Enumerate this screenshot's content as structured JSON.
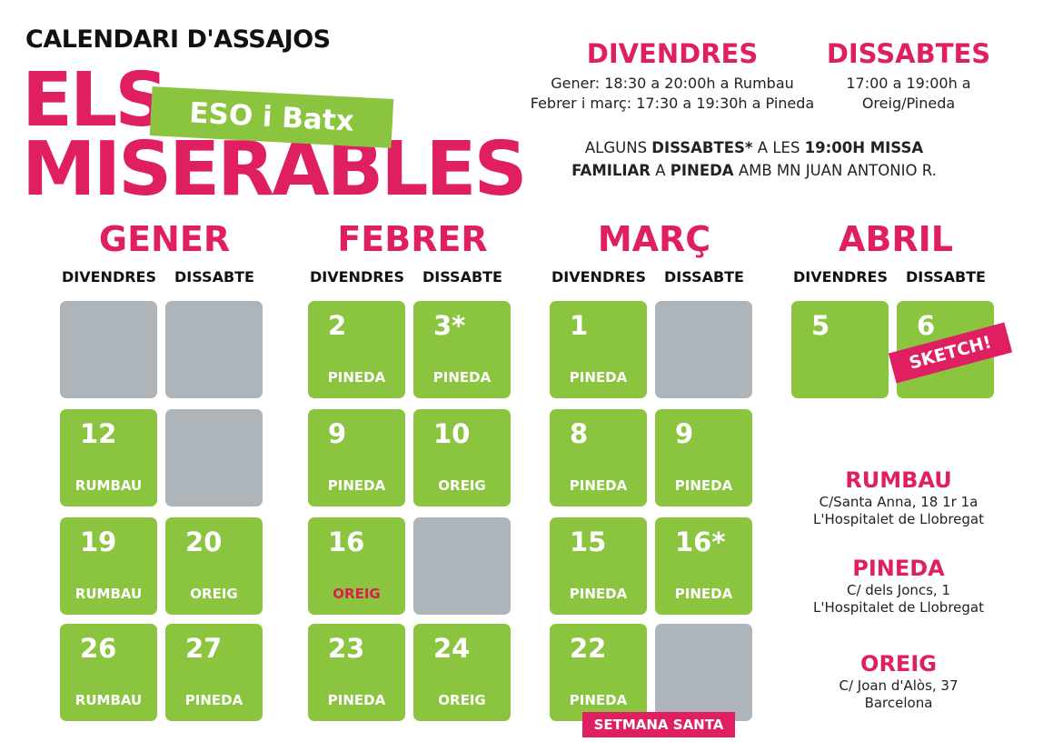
{
  "header": {
    "subtitle": "CALENDARI D'ASSAJOS",
    "title_line1": "ELS",
    "title_line2": "MISERABLES",
    "tag": "ESO i Batx"
  },
  "schedule": {
    "friday": {
      "heading": "DIVENDRES",
      "line1": "Gener: 18:30 a 20:00h a Rumbau",
      "line2": "Febrer i març: 17:30 a 19:30h a Pineda"
    },
    "saturday": {
      "heading": "DISSABTES",
      "line1": "17:00 a 19:00h a",
      "line2": "Oreig/Pineda"
    },
    "note": {
      "p1": "ALGUNS ",
      "b1": "DISSABTES*",
      "p2": " A LES ",
      "b2": "19:00H MISSA",
      "b3": "FAMILIAR",
      "p3": " A ",
      "b4": "PINEDA",
      "p4": " AMB MN JUAN ANTONIO R."
    }
  },
  "day_labels": {
    "friday": "DIVENDRES",
    "saturday": "DISSABTE"
  },
  "months": [
    {
      "name": "GENER",
      "rows": [
        [
          {
            "num": "",
            "loc": "",
            "type": "grey"
          },
          {
            "num": "",
            "loc": "",
            "type": "grey"
          }
        ],
        [
          {
            "num": "12",
            "loc": "RUMBAU",
            "type": "green"
          },
          {
            "num": "",
            "loc": "",
            "type": "grey"
          }
        ],
        [
          {
            "num": "19",
            "loc": "RUMBAU",
            "type": "green"
          },
          {
            "num": "20",
            "loc": "OREIG",
            "type": "green"
          }
        ],
        [
          {
            "num": "26",
            "loc": "RUMBAU",
            "type": "green"
          },
          {
            "num": "27",
            "loc": "PINEDA",
            "type": "green"
          }
        ]
      ]
    },
    {
      "name": "FEBRER",
      "rows": [
        [
          {
            "num": "2",
            "loc": "PINEDA",
            "type": "green"
          },
          {
            "num": "3*",
            "loc": "PINEDA",
            "type": "green"
          }
        ],
        [
          {
            "num": "9",
            "loc": "PINEDA",
            "type": "green"
          },
          {
            "num": "10",
            "loc": "OREIG",
            "type": "green"
          }
        ],
        [
          {
            "num": "16",
            "loc": "OREIG",
            "type": "green",
            "loc_color": "red"
          },
          {
            "num": "",
            "loc": "",
            "type": "grey"
          }
        ],
        [
          {
            "num": "23",
            "loc": "PINEDA",
            "type": "green"
          },
          {
            "num": "24",
            "loc": "OREIG",
            "type": "green"
          }
        ]
      ]
    },
    {
      "name": "MARÇ",
      "rows": [
        [
          {
            "num": "1",
            "loc": "PINEDA",
            "type": "green"
          },
          {
            "num": "",
            "loc": "",
            "type": "grey"
          }
        ],
        [
          {
            "num": "8",
            "loc": "PINEDA",
            "type": "green"
          },
          {
            "num": "9",
            "loc": "PINEDA",
            "type": "green"
          }
        ],
        [
          {
            "num": "15",
            "loc": "PINEDA",
            "type": "green"
          },
          {
            "num": "16*",
            "loc": "PINEDA",
            "type": "green"
          }
        ],
        [
          {
            "num": "22",
            "loc": "PINEDA",
            "type": "green"
          },
          {
            "num": "",
            "loc": "",
            "type": "grey"
          }
        ]
      ]
    },
    {
      "name": "ABRIL",
      "rows": [
        [
          {
            "num": "5",
            "loc": "",
            "type": "green"
          },
          {
            "num": "6",
            "loc": "",
            "type": "green"
          }
        ]
      ]
    }
  ],
  "badges": {
    "sketch": "SKETCH!",
    "setmana_santa": "SETMANA SANTA"
  },
  "locations": [
    {
      "name": "RUMBAU",
      "line1": "C/Santa Anna, 18 1r 1a",
      "line2": "L'Hospitalet de Llobregat"
    },
    {
      "name": "PINEDA",
      "line1": "C/ dels Joncs, 1",
      "line2": "L'Hospitalet de Llobregat"
    },
    {
      "name": "OREIG",
      "line1": "C/ Joan d'Alòs, 37",
      "line2": "Barcelona"
    }
  ],
  "colors": {
    "accent": "#e01f63",
    "green": "#8bc540",
    "grey": "#adb5ba"
  }
}
